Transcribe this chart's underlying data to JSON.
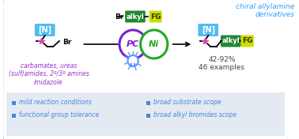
{
  "bg_color": "#ffffff",
  "border_color": "#aaaaaa",
  "bottom_panel_color": "#e4eaf2",
  "title_text": "chiral allylamine\nderivatives",
  "title_color": "#3399ff",
  "subtitle_left": "carbamates, ureas\n(sulf)amides, 2º/3º amines\nimidazole",
  "subtitle_left_color": "#9933cc",
  "yield_text": "42-92%\n46 examples",
  "yield_color": "#444444",
  "bullet_color": "#4488dd",
  "bullet_items_left": [
    "mild reaction conditions",
    "functional group tolerance"
  ],
  "bullet_items_right": [
    "broad substrate scope",
    "broad alkyl bromides scope"
  ],
  "N_box_color": "#55bbee",
  "alkyl_box_color": "#228833",
  "FG_box_color": "#ccdd00",
  "PC_circle_color": "#7722cc",
  "Ni_circle_color": "#22aa22",
  "star_color": "#dd44aa",
  "bulb_color": "#5599ff",
  "alkyl_text": "alkyl",
  "FG_text": "FG",
  "PC_text": "PC",
  "Ni_text": "Ni",
  "N_text": "[N]"
}
